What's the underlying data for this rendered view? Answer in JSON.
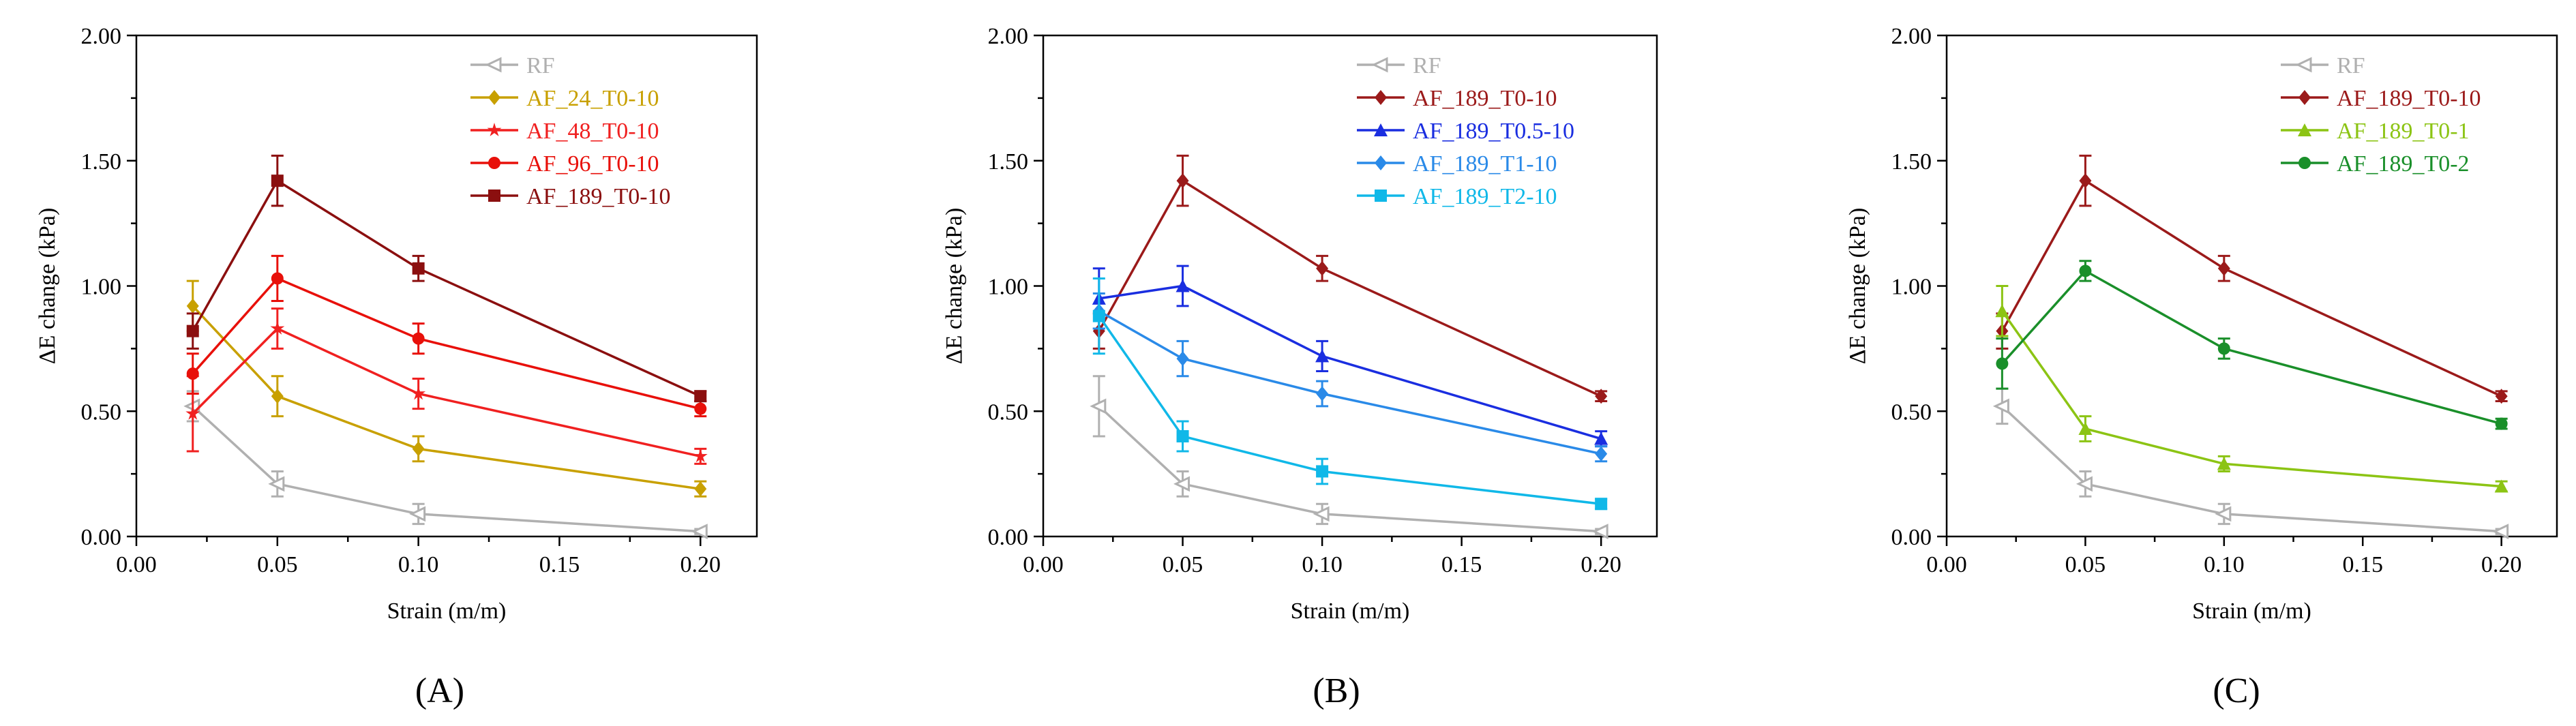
{
  "figure": {
    "panels": [
      {
        "id": "A",
        "label": "(A)"
      },
      {
        "id": "B",
        "label": "(B)"
      },
      {
        "id": "C",
        "label": "(C)"
      }
    ]
  },
  "chart_data": [
    {
      "type": "line",
      "panel_label": "(A)",
      "xlabel": "Strain (m/m)",
      "ylabel": "ΔE change (kPa)",
      "xlim": [
        0.0,
        0.22
      ],
      "ylim": [
        0.0,
        2.0
      ],
      "xticks": [
        "0.00",
        "0.05",
        "0.10",
        "0.15",
        "0.20"
      ],
      "yticks": [
        "0.00",
        "0.50",
        "1.00",
        "1.50",
        "2.00"
      ],
      "x": [
        0.02,
        0.05,
        0.1,
        0.2
      ],
      "legend_position": "top-right",
      "series": [
        {
          "name": "RF",
          "color": "#b0b0b0",
          "marker": "tri-left",
          "values": [
            0.52,
            0.21,
            0.09,
            0.02
          ],
          "errors": [
            0.06,
            0.05,
            0.04,
            0.01
          ]
        },
        {
          "name": "AF_24_T0-10",
          "color": "#c8a000",
          "marker": "diamond",
          "values": [
            0.92,
            0.56,
            0.35,
            0.19
          ],
          "errors": [
            0.1,
            0.08,
            0.05,
            0.03
          ]
        },
        {
          "name": "AF_48_T0-10",
          "color": "#f02020",
          "marker": "star",
          "values": [
            0.49,
            0.83,
            0.57,
            0.32
          ],
          "errors": [
            0.15,
            0.08,
            0.06,
            0.03
          ]
        },
        {
          "name": "AF_96_T0-10",
          "color": "#e8100a",
          "marker": "circle",
          "values": [
            0.65,
            1.03,
            0.79,
            0.51
          ],
          "errors": [
            0.08,
            0.09,
            0.06,
            0.03
          ]
        },
        {
          "name": "AF_189_T0-10",
          "color": "#8b0f0f",
          "marker": "square",
          "values": [
            0.82,
            1.42,
            1.07,
            0.56
          ],
          "errors": [
            0.07,
            0.1,
            0.05,
            0.02
          ]
        }
      ]
    },
    {
      "type": "line",
      "panel_label": "(B)",
      "xlabel": "Strain (m/m)",
      "ylabel": "ΔE change (kPa)",
      "xlim": [
        0.0,
        0.22
      ],
      "ylim": [
        0.0,
        2.0
      ],
      "xticks": [
        "0.00",
        "0.05",
        "0.10",
        "0.15",
        "0.20"
      ],
      "yticks": [
        "0.00",
        "0.50",
        "1.00",
        "1.50",
        "2.00"
      ],
      "x": [
        0.02,
        0.05,
        0.1,
        0.2
      ],
      "legend_position": "top-right",
      "series": [
        {
          "name": "RF",
          "color": "#b0b0b0",
          "marker": "tri-left",
          "values": [
            0.52,
            0.21,
            0.09,
            0.02
          ],
          "errors": [
            0.12,
            0.05,
            0.04,
            0.01
          ]
        },
        {
          "name": "AF_189_T0-10",
          "color": "#9b1a1a",
          "marker": "diamond",
          "values": [
            0.82,
            1.42,
            1.07,
            0.56
          ],
          "errors": [
            0.07,
            0.1,
            0.05,
            0.02
          ]
        },
        {
          "name": "AF_189_T0.5-10",
          "color": "#1a2ee0",
          "marker": "triangle",
          "values": [
            0.95,
            1.0,
            0.72,
            0.39
          ],
          "errors": [
            0.12,
            0.08,
            0.06,
            0.03
          ]
        },
        {
          "name": "AF_189_T1-10",
          "color": "#2a8ae8",
          "marker": "diamond",
          "values": [
            0.9,
            0.71,
            0.57,
            0.33
          ],
          "errors": [
            0.07,
            0.07,
            0.05,
            0.03
          ]
        },
        {
          "name": "AF_189_T2-10",
          "color": "#10b8e8",
          "marker": "square",
          "values": [
            0.88,
            0.4,
            0.26,
            0.13
          ],
          "errors": [
            0.15,
            0.06,
            0.05,
            0.02
          ]
        }
      ]
    },
    {
      "type": "line",
      "panel_label": "(C)",
      "xlabel": "Strain (m/m)",
      "ylabel": "ΔE change (kPa)",
      "xlim": [
        0.0,
        0.22
      ],
      "ylim": [
        0.0,
        2.0
      ],
      "xticks": [
        "0.00",
        "0.05",
        "0.10",
        "0.15",
        "0.20"
      ],
      "yticks": [
        "0.00",
        "0.50",
        "1.00",
        "1.50",
        "2.00"
      ],
      "x": [
        0.02,
        0.05,
        0.1,
        0.2
      ],
      "legend_position": "top-right",
      "series": [
        {
          "name": "RF",
          "color": "#b0b0b0",
          "marker": "tri-left",
          "values": [
            0.52,
            0.21,
            0.09,
            0.02
          ],
          "errors": [
            0.07,
            0.05,
            0.04,
            0.01
          ]
        },
        {
          "name": "AF_189_T0-10",
          "color": "#9b1a1a",
          "marker": "diamond",
          "values": [
            0.82,
            1.42,
            1.07,
            0.56
          ],
          "errors": [
            0.07,
            0.1,
            0.05,
            0.02
          ]
        },
        {
          "name": "AF_189_T0-1",
          "color": "#8cc414",
          "marker": "triangle",
          "values": [
            0.9,
            0.43,
            0.29,
            0.2
          ],
          "errors": [
            0.1,
            0.05,
            0.03,
            0.02
          ]
        },
        {
          "name": "AF_189_T0-2",
          "color": "#1a8f2a",
          "marker": "circle",
          "values": [
            0.69,
            1.06,
            0.75,
            0.45
          ],
          "errors": [
            0.1,
            0.04,
            0.04,
            0.02
          ]
        }
      ]
    }
  ]
}
